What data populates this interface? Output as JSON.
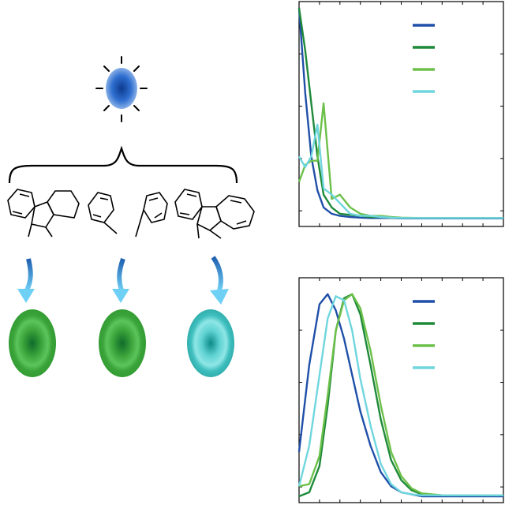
{
  "figure": {
    "source_icon": "blue-light-bulb-icon",
    "molecules": [
      "tricyclic-ring-molecule",
      "two-phenyl-fragments-molecule",
      "fluorene-like-molecule"
    ],
    "emission_icons": [
      {
        "name": "green-emission-icon-1",
        "outer": "#3aa33a",
        "mid": "#4cbb4c",
        "core": "#0f6b2a"
      },
      {
        "name": "green-emission-icon-2",
        "outer": "#3aa33a",
        "mid": "#4cbb4c",
        "core": "#0f6b2a"
      },
      {
        "name": "cyan-emission-icon",
        "outer": "#2fb6b2",
        "mid": "#6fd9d8",
        "core": "#0d8a8a"
      }
    ],
    "colors": {
      "dark_blue": "#1f4fa8",
      "dark_green": "#1f8a3a",
      "light_green": "#6cc04a",
      "cyan": "#6fd6de",
      "arrow": "#4aa8e6"
    }
  },
  "chart_data": [
    {
      "type": "line",
      "title": "",
      "xlabel": "",
      "ylabel": "",
      "x": [
        0,
        0.03,
        0.06,
        0.09,
        0.12,
        0.16,
        0.2,
        0.25,
        0.3,
        0.35,
        0.4,
        0.45,
        0.5,
        0.6,
        0.7,
        0.8,
        0.9,
        1.0
      ],
      "xlim": [
        0,
        1
      ],
      "ylim": [
        0,
        1
      ],
      "legend_position": "top-right",
      "series": [
        {
          "color": "#1f4fa8",
          "values": [
            1.0,
            0.6,
            0.3,
            0.14,
            0.06,
            0.03,
            0.02,
            0.015,
            0.012,
            0.01,
            0.01,
            0.01,
            0.008,
            0.008,
            0.008,
            0.008,
            0.008,
            0.008
          ]
        },
        {
          "color": "#1f8a3a",
          "values": [
            1.0,
            0.8,
            0.55,
            0.3,
            0.12,
            0.06,
            0.03,
            0.025,
            0.02,
            0.015,
            0.015,
            0.012,
            0.01,
            0.01,
            0.01,
            0.01,
            0.01,
            0.01
          ]
        },
        {
          "color": "#6cc04a",
          "values": [
            0.18,
            0.26,
            0.28,
            0.28,
            0.55,
            0.1,
            0.12,
            0.06,
            0.03,
            0.02,
            0.02,
            0.015,
            0.012,
            0.01,
            0.01,
            0.01,
            0.01,
            0.01
          ]
        },
        {
          "color": "#6fd6de",
          "values": [
            0.3,
            0.25,
            0.3,
            0.45,
            0.15,
            0.12,
            0.08,
            0.03,
            0.02,
            0.02,
            0.015,
            0.012,
            0.01,
            0.01,
            0.01,
            0.01,
            0.01,
            0.01
          ]
        }
      ]
    },
    {
      "type": "line",
      "title": "",
      "xlabel": "",
      "ylabel": "",
      "x": [
        0,
        0.05,
        0.1,
        0.14,
        0.18,
        0.22,
        0.26,
        0.3,
        0.35,
        0.4,
        0.45,
        0.5,
        0.55,
        0.6,
        0.7,
        0.8,
        0.9,
        1.0
      ],
      "xlim": [
        0,
        1
      ],
      "ylim": [
        0,
        1.05
      ],
      "legend_position": "top-right",
      "series": [
        {
          "color": "#1f4fa8",
          "values": [
            0.22,
            0.65,
            0.95,
            1.0,
            0.92,
            0.78,
            0.6,
            0.42,
            0.25,
            0.12,
            0.05,
            0.02,
            0.01,
            0.0,
            0.0,
            0.0,
            0.0,
            0.0
          ]
        },
        {
          "color": "#1f8a3a",
          "values": [
            0.0,
            0.02,
            0.15,
            0.45,
            0.82,
            0.98,
            1.0,
            0.9,
            0.65,
            0.38,
            0.18,
            0.08,
            0.03,
            0.01,
            0.005,
            0.005,
            0.005,
            0.005
          ]
        },
        {
          "color": "#6cc04a",
          "values": [
            0.05,
            0.06,
            0.2,
            0.5,
            0.82,
            0.97,
            1.0,
            0.93,
            0.72,
            0.45,
            0.22,
            0.1,
            0.04,
            0.015,
            0.005,
            0.005,
            0.005,
            0.005
          ]
        },
        {
          "color": "#6fd6de",
          "values": [
            0.05,
            0.25,
            0.6,
            0.88,
            0.99,
            0.97,
            0.82,
            0.58,
            0.35,
            0.16,
            0.06,
            0.02,
            0.01,
            0.005,
            0.005,
            0.005,
            0.005,
            0.005
          ]
        }
      ]
    }
  ]
}
